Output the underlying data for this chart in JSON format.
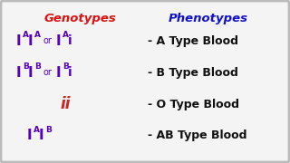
{
  "title_genotypes": "Genotypes",
  "title_phenotypes": "Phenotypes",
  "title_genotypes_color": "#dd1111",
  "title_phenotypes_color": "#1111cc",
  "genotype_color": "#5500bb",
  "ii_color": "#cc2222",
  "phenotype_color": "#111111",
  "background_color": "#f4f4f4",
  "border_color": "#bbbbbb",
  "phenotypes": [
    "- A Type Blood",
    "- B Type Blood",
    "- O Type Blood",
    "- AB Type Blood"
  ],
  "figsize": [
    3.2,
    1.8
  ],
  "dpi": 100
}
